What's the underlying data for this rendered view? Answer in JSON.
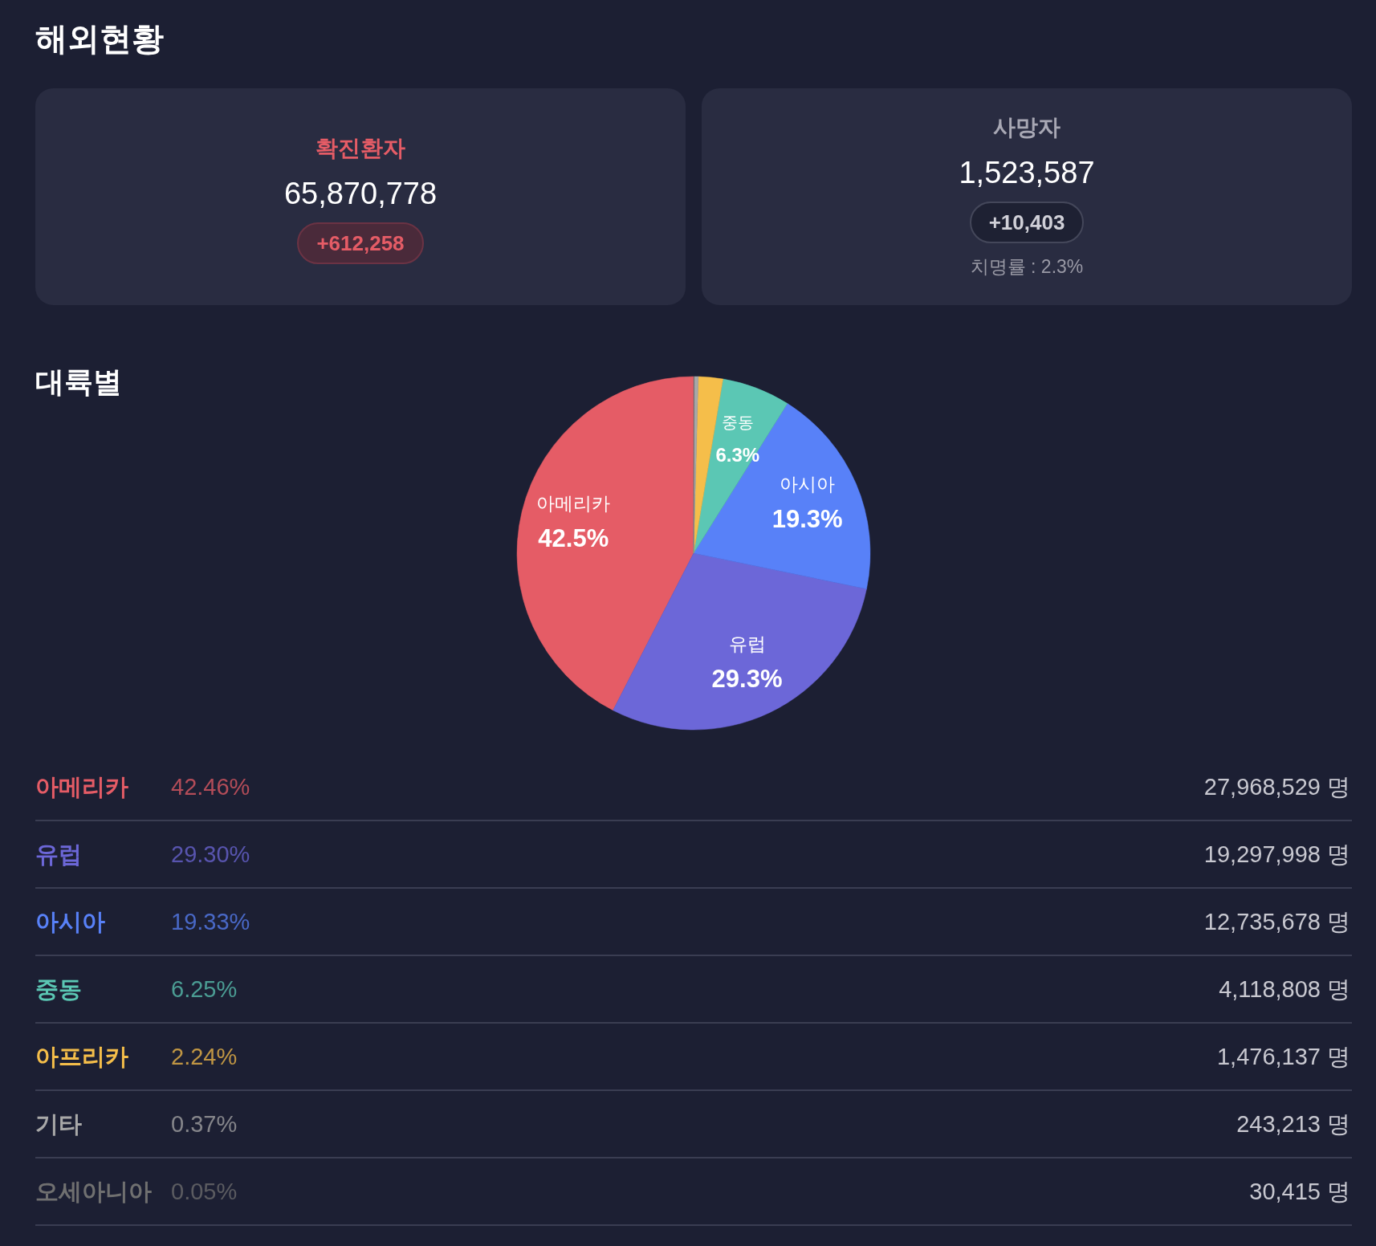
{
  "chart_data": [
    {
      "type": "other",
      "title": "해외현황",
      "annotations": [
        "확진환자",
        "65,870,778",
        "+612,258",
        "사망자",
        "1,523,587",
        "+10,403",
        "치명률 : 2.3%"
      ]
    },
    {
      "type": "pie",
      "title": "대륙별",
      "categories": [
        "아메리카",
        "유럽",
        "아시아",
        "중동",
        null,
        null,
        null
      ],
      "values": [
        42.46,
        29.3,
        19.33,
        6.25,
        2.24,
        0.37,
        0.05
      ],
      "colors": [
        "#e55c66",
        "#6c67d8",
        "#5881f8",
        "#5bc7b4",
        "#f5be4a",
        "#a8a8a8",
        "#707070"
      ],
      "value_labels": [
        "42.5%",
        "29.3%",
        "19.3%",
        "6.3%",
        null,
        null,
        null
      ]
    },
    {
      "type": "other",
      "categories": [
        "아메리카",
        "유럽",
        "아시아",
        "중동",
        "아프리카",
        "기타",
        "오세아니아"
      ],
      "colors": [
        "#e55c66",
        "#6c67d8",
        "#5881f8",
        "#5bc7b4",
        "#f5be4a",
        "#a8a8a8",
        "#707070"
      ],
      "annotations": [
        "42.46%",
        "29.30%",
        "19.33%",
        "6.25%",
        "2.24%",
        "0.37%",
        "0.05%",
        "27,968,529",
        "19,297,998",
        "12,735,678",
        "4,118,808",
        "1,476,137",
        "243,213",
        "30,415",
        "명"
      ]
    }
  ]
}
